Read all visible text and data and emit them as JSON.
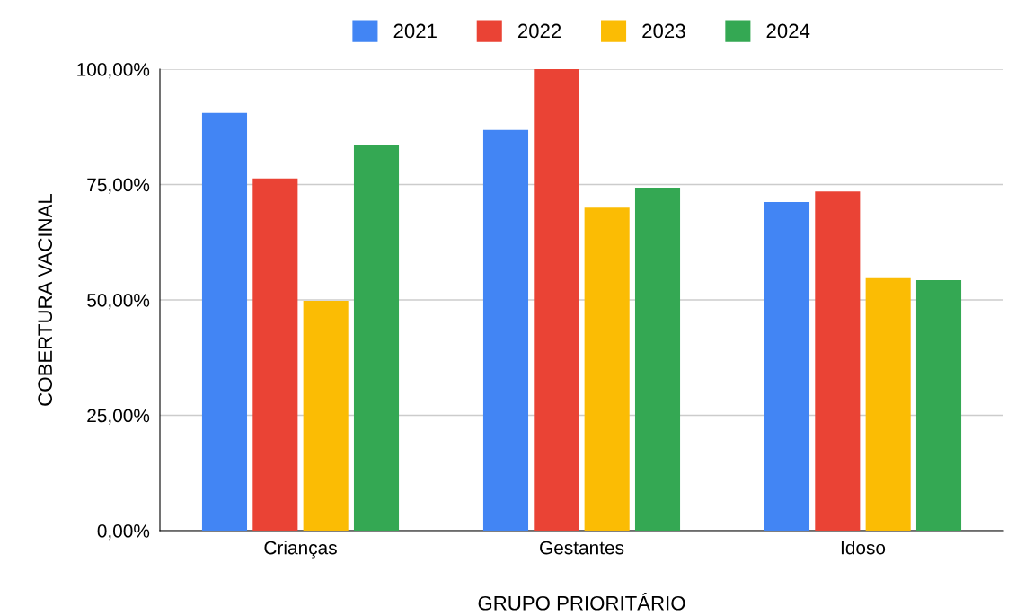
{
  "chart_data": {
    "type": "bar",
    "xlabel": "GRUPO PRIORITÁRIO",
    "ylabel": "COBERTURA VACINAL",
    "categories": [
      "Crianças",
      "Gestantes",
      "Idoso"
    ],
    "series": [
      {
        "name": "2021",
        "color": "#4285f4",
        "values": [
          90.5,
          86.8,
          71.2
        ]
      },
      {
        "name": "2022",
        "color": "#ea4335",
        "values": [
          76.3,
          100,
          73.5
        ]
      },
      {
        "name": "2023",
        "color": "#fbbc04",
        "values": [
          49.8,
          70.0,
          54.7
        ]
      },
      {
        "name": "2024",
        "color": "#34a853",
        "values": [
          83.5,
          74.3,
          54.3
        ]
      }
    ],
    "ylim": [
      0,
      100
    ],
    "yticks": [
      {
        "value": 0,
        "label": "0,00%"
      },
      {
        "value": 25,
        "label": "25,00%"
      },
      {
        "value": 50,
        "label": "50,00%"
      },
      {
        "value": 75,
        "label": "75,00%"
      },
      {
        "value": 100,
        "label": "100,00%"
      }
    ],
    "grid": "y",
    "legend": "top"
  }
}
